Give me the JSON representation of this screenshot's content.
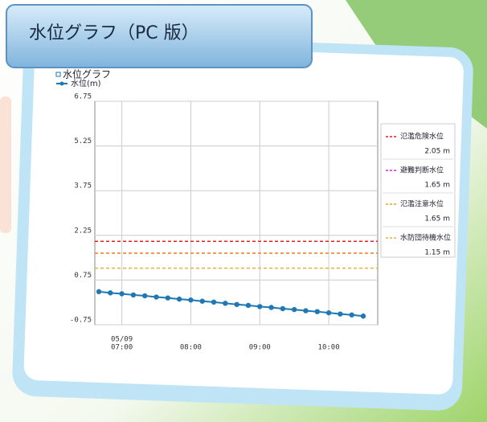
{
  "header": {
    "title": "水位グラフ（PC 版）"
  },
  "chart_data": {
    "type": "line",
    "title": "水位グラフ",
    "date_label": "05/09",
    "categories": [
      null,
      null,
      "07:00",
      null,
      null,
      null,
      null,
      null,
      "08:00",
      null,
      null,
      null,
      null,
      null,
      "09:00",
      null,
      null,
      null,
      null,
      null,
      "10:00",
      null,
      null,
      null
    ],
    "series": [
      {
        "name": "水位(m)",
        "color": "#1f77b4",
        "values": [
          0.36,
          0.32,
          0.29,
          0.25,
          0.22,
          0.18,
          0.15,
          0.11,
          0.08,
          0.04,
          0.01,
          -0.03,
          -0.07,
          -0.1,
          -0.14,
          -0.17,
          -0.21,
          -0.24,
          -0.28,
          -0.31,
          -0.35,
          -0.39,
          -0.42,
          -0.46
        ]
      }
    ],
    "thresholds": [
      {
        "name": "氾濫危険水位",
        "value": 2.05,
        "value_label": "2.05 m",
        "color": "#e02020"
      },
      {
        "name": "避難判断水位",
        "value": 1.65,
        "value_label": "1.65 m",
        "color": "#e020e0"
      },
      {
        "name": "氾濫注意水位",
        "value": 1.65,
        "value_label": "1.65 m",
        "color": "#f0a020"
      },
      {
        "name": "水防団待機水位",
        "value": 1.15,
        "value_label": "1.15 m",
        "color": "#f0b030"
      }
    ],
    "ylim": [
      -0.75,
      6.75
    ],
    "yticks": [
      -0.75,
      0.75,
      2.25,
      3.75,
      5.25,
      6.75
    ],
    "grid": true
  }
}
